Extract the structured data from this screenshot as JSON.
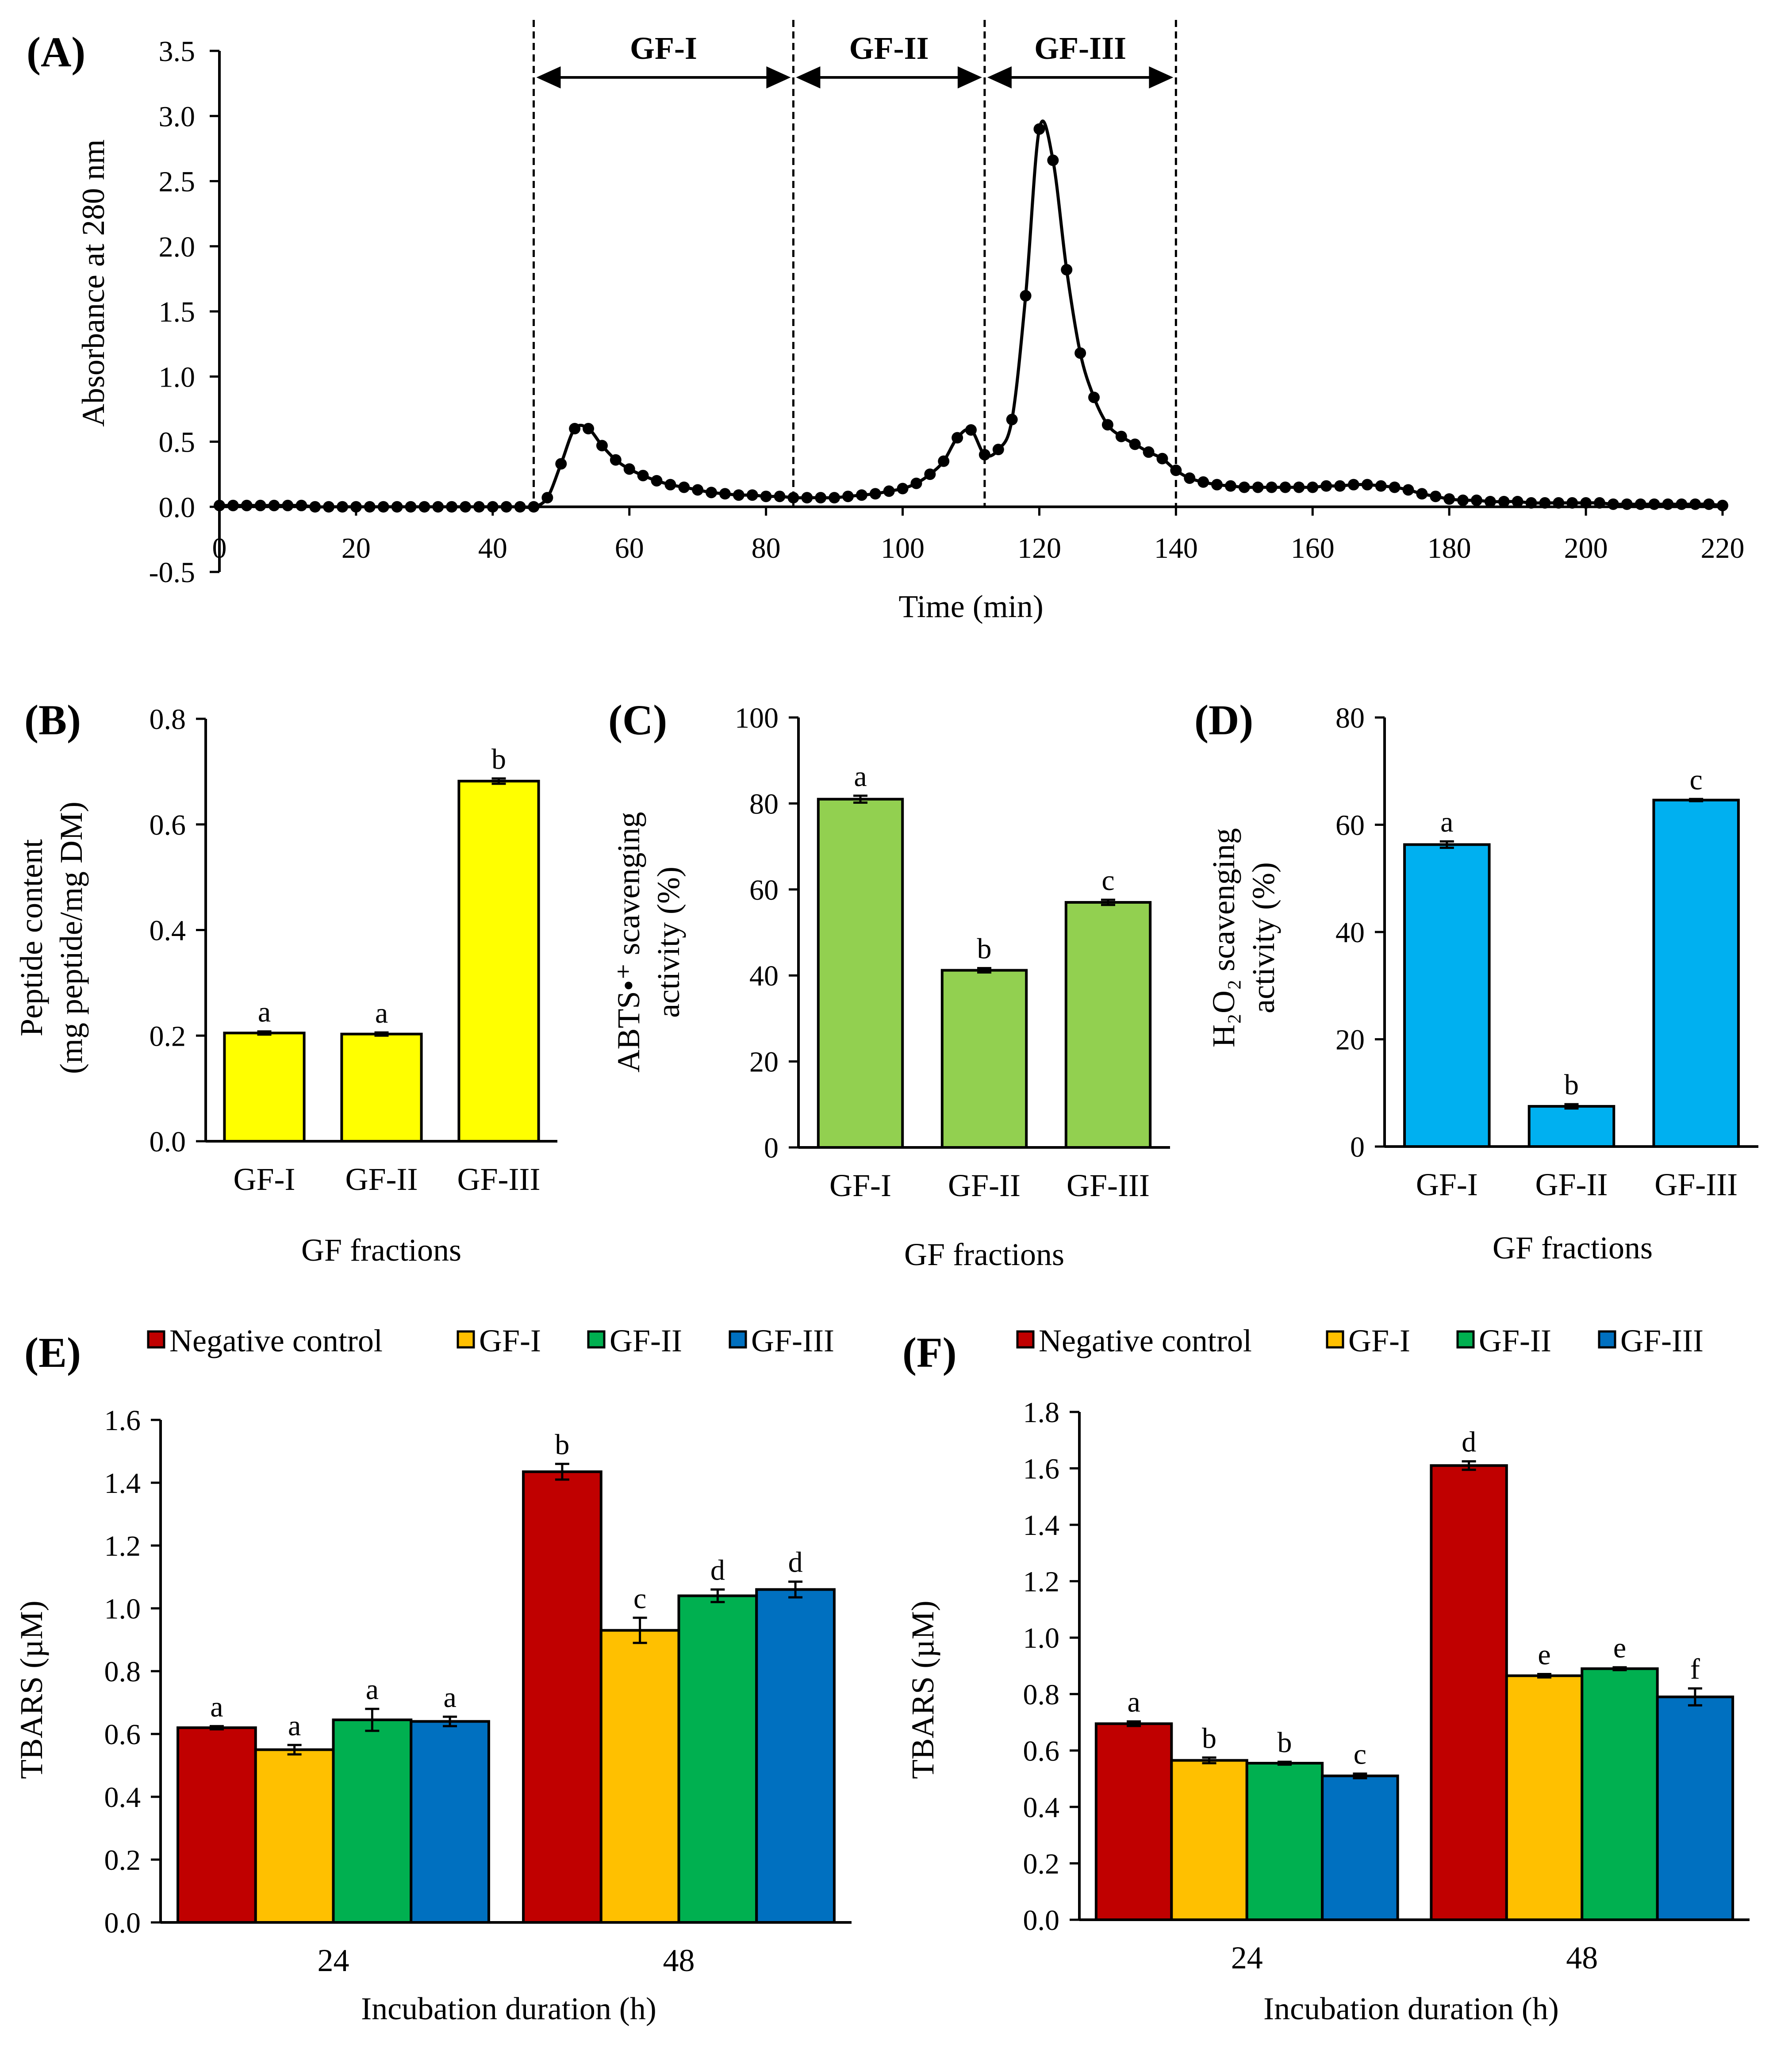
{
  "colors": {
    "negative_control": "#C00000",
    "gf1": "#FFC000",
    "gf2": "#00B050",
    "gf3": "#0070C0",
    "panel_b": "#FFFF00",
    "panel_c": "#92D050",
    "panel_d": "#00B0F0"
  },
  "chart_data": [
    {
      "id": "A",
      "panel_label": "(A)",
      "type": "line",
      "title": "",
      "xlabel": "Time (min)",
      "ylabel": "Absorbance at 280 nm",
      "xlim": [
        0,
        220
      ],
      "ylim": [
        -0.5,
        3.5
      ],
      "xticks": [
        "0",
        "20",
        "40",
        "60",
        "80",
        "100",
        "120",
        "140",
        "160",
        "180",
        "200",
        "220"
      ],
      "yticks": [
        "-0.5",
        "0.0",
        "0.5",
        "1.0",
        "1.5",
        "2.0",
        "2.5",
        "3.0",
        "3.5"
      ],
      "grid": false,
      "x": [
        0,
        2,
        4,
        6,
        8,
        10,
        12,
        14,
        16,
        18,
        20,
        22,
        24,
        26,
        28,
        30,
        32,
        34,
        36,
        38,
        40,
        42,
        44,
        46,
        48,
        50,
        52,
        54,
        56,
        58,
        60,
        62,
        64,
        66,
        68,
        70,
        72,
        74,
        76,
        78,
        80,
        82,
        84,
        86,
        88,
        90,
        92,
        94,
        96,
        98,
        100,
        102,
        104,
        106,
        108,
        110,
        112,
        114,
        116,
        118,
        120,
        122,
        124,
        126,
        128,
        130,
        132,
        134,
        136,
        138,
        140,
        142,
        144,
        146,
        148,
        150,
        152,
        154,
        156,
        158,
        160,
        162,
        164,
        166,
        168,
        170,
        172,
        174,
        176,
        178,
        180,
        182,
        184,
        186,
        188,
        190,
        192,
        194,
        196,
        198,
        200,
        202,
        204,
        206,
        208,
        210,
        212,
        214,
        216,
        218,
        220
      ],
      "y": [
        0.01,
        0.01,
        0.01,
        0.01,
        0.01,
        0.01,
        0.01,
        0.0,
        0.0,
        0.0,
        0.0,
        0.0,
        0.0,
        0.0,
        0.0,
        0.0,
        0.0,
        0.0,
        0.0,
        0.0,
        0.0,
        0.0,
        0.0,
        0.0,
        0.07,
        0.33,
        0.6,
        0.6,
        0.47,
        0.36,
        0.29,
        0.24,
        0.2,
        0.17,
        0.15,
        0.13,
        0.11,
        0.1,
        0.09,
        0.09,
        0.08,
        0.08,
        0.07,
        0.07,
        0.07,
        0.07,
        0.08,
        0.09,
        0.1,
        0.12,
        0.14,
        0.18,
        0.25,
        0.35,
        0.53,
        0.59,
        0.4,
        0.44,
        0.67,
        1.62,
        2.9,
        2.66,
        1.82,
        1.18,
        0.84,
        0.63,
        0.54,
        0.48,
        0.42,
        0.37,
        0.28,
        0.22,
        0.19,
        0.17,
        0.16,
        0.15,
        0.15,
        0.15,
        0.15,
        0.15,
        0.15,
        0.16,
        0.16,
        0.17,
        0.17,
        0.16,
        0.15,
        0.13,
        0.1,
        0.08,
        0.06,
        0.05,
        0.05,
        0.04,
        0.04,
        0.04,
        0.03,
        0.03,
        0.03,
        0.03,
        0.03,
        0.03,
        0.02,
        0.02,
        0.02,
        0.02,
        0.02,
        0.02,
        0.02,
        0.02,
        0.01
      ],
      "regions": [
        {
          "label": "GF-I",
          "start": 46,
          "end": 84
        },
        {
          "label": "GF-II",
          "start": 84,
          "end": 112
        },
        {
          "label": "GF-III",
          "start": 112,
          "end": 140
        }
      ]
    },
    {
      "id": "B",
      "panel_label": "(B)",
      "type": "bar",
      "title": "",
      "xlabel": "GF fractions",
      "ylabel_lines": [
        "Peptide content",
        "(mg peptide/mg DM)"
      ],
      "categories": [
        "GF-I",
        "GF-II",
        "GF-III"
      ],
      "values": [
        0.205,
        0.203,
        0.682
      ],
      "errors": [
        0.003,
        0.003,
        0.005
      ],
      "sig": [
        "a",
        "a",
        "b"
      ],
      "ylim": [
        0,
        0.8
      ],
      "yticks": [
        "0.0",
        "0.2",
        "0.4",
        "0.6",
        "0.8"
      ],
      "grid": false
    },
    {
      "id": "C",
      "panel_label": "(C)",
      "type": "bar",
      "title": "",
      "xlabel": "GF fractions",
      "ylabel_lines": [
        "ABTS•⁺ scavenging",
        "activity (%)"
      ],
      "categories": [
        "GF-I",
        "GF-II",
        "GF-III"
      ],
      "values": [
        81.0,
        41.2,
        57.0
      ],
      "errors": [
        0.8,
        0.5,
        0.6
      ],
      "sig": [
        "a",
        "b",
        "c"
      ],
      "ylim": [
        0,
        100
      ],
      "yticks": [
        "0",
        "20",
        "40",
        "60",
        "80",
        "100"
      ],
      "grid": false
    },
    {
      "id": "D",
      "panel_label": "(D)",
      "type": "bar",
      "title": "",
      "xlabel": "GF fractions",
      "ylabel_lines": [
        "H₂O₂ scavenging",
        "activity (%)"
      ],
      "categories": [
        "GF-I",
        "GF-II",
        "GF-III"
      ],
      "values": [
        56.3,
        7.5,
        64.6
      ],
      "errors": [
        0.6,
        0.4,
        0.2
      ],
      "sig": [
        "a",
        "b",
        "c"
      ],
      "ylim": [
        0,
        80
      ],
      "yticks": [
        "0",
        "20",
        "40",
        "60",
        "80"
      ],
      "grid": false
    },
    {
      "id": "E",
      "panel_label": "(E)",
      "type": "bar",
      "title": "",
      "xlabel": "Incubation duration (h)",
      "ylabel": "TBARS (µM)",
      "categories": [
        "24",
        "48"
      ],
      "legend": [
        "Negative control",
        "GF-I",
        "GF-II",
        "GF-III"
      ],
      "legend_position": "top",
      "series": [
        {
          "name": "Negative control",
          "values": [
            0.62,
            1.435
          ],
          "errors": [
            0.005,
            0.025
          ],
          "sig": [
            "a",
            "b"
          ]
        },
        {
          "name": "GF-I",
          "values": [
            0.55,
            0.93
          ],
          "errors": [
            0.015,
            0.04
          ],
          "sig": [
            "a",
            "c"
          ]
        },
        {
          "name": "GF-II",
          "values": [
            0.645,
            1.04
          ],
          "errors": [
            0.035,
            0.02
          ],
          "sig": [
            "a",
            "d"
          ]
        },
        {
          "name": "GF-III",
          "values": [
            0.64,
            1.06
          ],
          "errors": [
            0.015,
            0.025
          ],
          "sig": [
            "a",
            "d"
          ]
        }
      ],
      "ylim": [
        0,
        1.6
      ],
      "yticks": [
        "0.0",
        "0.2",
        "0.4",
        "0.6",
        "0.8",
        "1.0",
        "1.2",
        "1.4",
        "1.6"
      ],
      "grid": false
    },
    {
      "id": "F",
      "panel_label": "(F)",
      "type": "bar",
      "title": "",
      "xlabel": "Incubation duration (h)",
      "ylabel": "TBARS (µM)",
      "categories": [
        "24",
        "48"
      ],
      "legend": [
        "Negative control",
        "GF-I",
        "GF-II",
        "GF-III"
      ],
      "legend_position": "top",
      "series": [
        {
          "name": "Negative control",
          "values": [
            0.695,
            1.61
          ],
          "errors": [
            0.008,
            0.015
          ],
          "sig": [
            "a",
            "d"
          ]
        },
        {
          "name": "GF-I",
          "values": [
            0.565,
            0.865
          ],
          "errors": [
            0.01,
            0.006
          ],
          "sig": [
            "b",
            "e"
          ]
        },
        {
          "name": "GF-II",
          "values": [
            0.555,
            0.89
          ],
          "errors": [
            0.005,
            0.005
          ],
          "sig": [
            "b",
            "e"
          ]
        },
        {
          "name": "GF-III",
          "values": [
            0.51,
            0.79
          ],
          "errors": [
            0.008,
            0.03
          ],
          "sig": [
            "c",
            "f"
          ]
        }
      ],
      "ylim": [
        0,
        1.8
      ],
      "yticks": [
        "0.0",
        "0.2",
        "0.4",
        "0.6",
        "0.8",
        "1.0",
        "1.2",
        "1.4",
        "1.6",
        "1.8"
      ],
      "grid": false
    }
  ]
}
